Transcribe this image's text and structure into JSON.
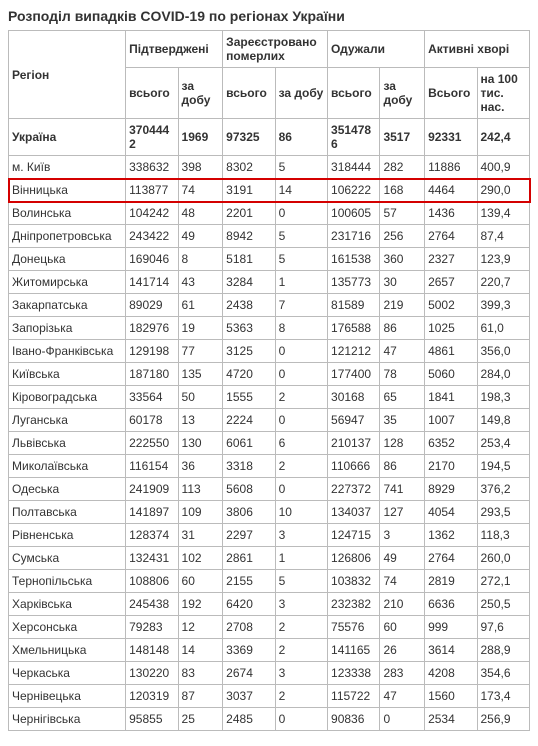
{
  "title": "Розподіл випадків COVID-19 по регіонах України",
  "headers": {
    "region": "Регіон",
    "confirmed": "Підтверджені",
    "deaths": "Зареєстровано померлих",
    "recovered": "Одужали",
    "active": "Активні хворі",
    "total": "всього",
    "daily": "за добу",
    "per100k": "на 100 тис. нас.",
    "total_cap": "Всього"
  },
  "colors": {
    "highlight_border": "#d40000",
    "border": "#bbbbbb",
    "text": "#333333",
    "background": "#ffffff"
  },
  "highlight_index": 2,
  "rows": [
    {
      "region": "Україна",
      "conf_t": "3704442",
      "conf_d": "1969",
      "dth_t": "97325",
      "dth_d": "86",
      "rec_t": "3514786",
      "rec_d": "3517",
      "act_t": "92331",
      "act_p": "242,4",
      "total": true
    },
    {
      "region": "м. Київ",
      "conf_t": "338632",
      "conf_d": "398",
      "dth_t": "8302",
      "dth_d": "5",
      "rec_t": "318444",
      "rec_d": "282",
      "act_t": "11886",
      "act_p": "400,9"
    },
    {
      "region": "Вінницька",
      "conf_t": "113877",
      "conf_d": "74",
      "dth_t": "3191",
      "dth_d": "14",
      "rec_t": "106222",
      "rec_d": "168",
      "act_t": "4464",
      "act_p": "290,0"
    },
    {
      "region": "Волинська",
      "conf_t": "104242",
      "conf_d": "48",
      "dth_t": "2201",
      "dth_d": "0",
      "rec_t": "100605",
      "rec_d": "57",
      "act_t": "1436",
      "act_p": "139,4"
    },
    {
      "region": "Дніпропетровська",
      "conf_t": "243422",
      "conf_d": "49",
      "dth_t": "8942",
      "dth_d": "5",
      "rec_t": "231716",
      "rec_d": "256",
      "act_t": "2764",
      "act_p": "87,4"
    },
    {
      "region": "Донецька",
      "conf_t": "169046",
      "conf_d": "8",
      "dth_t": "5181",
      "dth_d": "5",
      "rec_t": "161538",
      "rec_d": "360",
      "act_t": "2327",
      "act_p": "123,9"
    },
    {
      "region": "Житомирська",
      "conf_t": "141714",
      "conf_d": "43",
      "dth_t": "3284",
      "dth_d": "1",
      "rec_t": "135773",
      "rec_d": "30",
      "act_t": "2657",
      "act_p": "220,7"
    },
    {
      "region": "Закарпатська",
      "conf_t": "89029",
      "conf_d": "61",
      "dth_t": "2438",
      "dth_d": "7",
      "rec_t": "81589",
      "rec_d": "219",
      "act_t": "5002",
      "act_p": "399,3"
    },
    {
      "region": "Запорізька",
      "conf_t": "182976",
      "conf_d": "19",
      "dth_t": "5363",
      "dth_d": "8",
      "rec_t": "176588",
      "rec_d": "86",
      "act_t": "1025",
      "act_p": "61,0"
    },
    {
      "region": "Івано-Франківська",
      "conf_t": "129198",
      "conf_d": "77",
      "dth_t": "3125",
      "dth_d": "0",
      "rec_t": "121212",
      "rec_d": "47",
      "act_t": "4861",
      "act_p": "356,0"
    },
    {
      "region": "Київська",
      "conf_t": "187180",
      "conf_d": "135",
      "dth_t": "4720",
      "dth_d": "0",
      "rec_t": "177400",
      "rec_d": "78",
      "act_t": "5060",
      "act_p": "284,0"
    },
    {
      "region": "Кіровоградська",
      "conf_t": "33564",
      "conf_d": "50",
      "dth_t": "1555",
      "dth_d": "2",
      "rec_t": "30168",
      "rec_d": "65",
      "act_t": "1841",
      "act_p": "198,3"
    },
    {
      "region": "Луганська",
      "conf_t": "60178",
      "conf_d": "13",
      "dth_t": "2224",
      "dth_d": "0",
      "rec_t": "56947",
      "rec_d": "35",
      "act_t": "1007",
      "act_p": "149,8"
    },
    {
      "region": "Львівська",
      "conf_t": "222550",
      "conf_d": "130",
      "dth_t": "6061",
      "dth_d": "6",
      "rec_t": "210137",
      "rec_d": "128",
      "act_t": "6352",
      "act_p": "253,4"
    },
    {
      "region": "Миколаївська",
      "conf_t": "116154",
      "conf_d": "36",
      "dth_t": "3318",
      "dth_d": "2",
      "rec_t": "110666",
      "rec_d": "86",
      "act_t": "2170",
      "act_p": "194,5"
    },
    {
      "region": "Одеська",
      "conf_t": "241909",
      "conf_d": "113",
      "dth_t": "5608",
      "dth_d": "0",
      "rec_t": "227372",
      "rec_d": "741",
      "act_t": "8929",
      "act_p": "376,2"
    },
    {
      "region": "Полтавська",
      "conf_t": "141897",
      "conf_d": "109",
      "dth_t": "3806",
      "dth_d": "10",
      "rec_t": "134037",
      "rec_d": "127",
      "act_t": "4054",
      "act_p": "293,5"
    },
    {
      "region": "Рівненська",
      "conf_t": "128374",
      "conf_d": "31",
      "dth_t": "2297",
      "dth_d": "3",
      "rec_t": "124715",
      "rec_d": "3",
      "act_t": "1362",
      "act_p": "118,3"
    },
    {
      "region": "Сумська",
      "conf_t": "132431",
      "conf_d": "102",
      "dth_t": "2861",
      "dth_d": "1",
      "rec_t": "126806",
      "rec_d": "49",
      "act_t": "2764",
      "act_p": "260,0"
    },
    {
      "region": "Тернопільська",
      "conf_t": "108806",
      "conf_d": "60",
      "dth_t": "2155",
      "dth_d": "5",
      "rec_t": "103832",
      "rec_d": "74",
      "act_t": "2819",
      "act_p": "272,1"
    },
    {
      "region": "Харківська",
      "conf_t": "245438",
      "conf_d": "192",
      "dth_t": "6420",
      "dth_d": "3",
      "rec_t": "232382",
      "rec_d": "210",
      "act_t": "6636",
      "act_p": "250,5"
    },
    {
      "region": "Херсонська",
      "conf_t": "79283",
      "conf_d": "12",
      "dth_t": "2708",
      "dth_d": "2",
      "rec_t": "75576",
      "rec_d": "60",
      "act_t": "999",
      "act_p": "97,6"
    },
    {
      "region": "Хмельницька",
      "conf_t": "148148",
      "conf_d": "14",
      "dth_t": "3369",
      "dth_d": "2",
      "rec_t": "141165",
      "rec_d": "26",
      "act_t": "3614",
      "act_p": "288,9"
    },
    {
      "region": "Черкаська",
      "conf_t": "130220",
      "conf_d": "83",
      "dth_t": "2674",
      "dth_d": "3",
      "rec_t": "123338",
      "rec_d": "283",
      "act_t": "4208",
      "act_p": "354,6"
    },
    {
      "region": "Чернівецька",
      "conf_t": "120319",
      "conf_d": "87",
      "dth_t": "3037",
      "dth_d": "2",
      "rec_t": "115722",
      "rec_d": "47",
      "act_t": "1560",
      "act_p": "173,4"
    },
    {
      "region": "Чернігівська",
      "conf_t": "95855",
      "conf_d": "25",
      "dth_t": "2485",
      "dth_d": "0",
      "rec_t": "90836",
      "rec_d": "0",
      "act_t": "2534",
      "act_p": "256,9"
    }
  ]
}
